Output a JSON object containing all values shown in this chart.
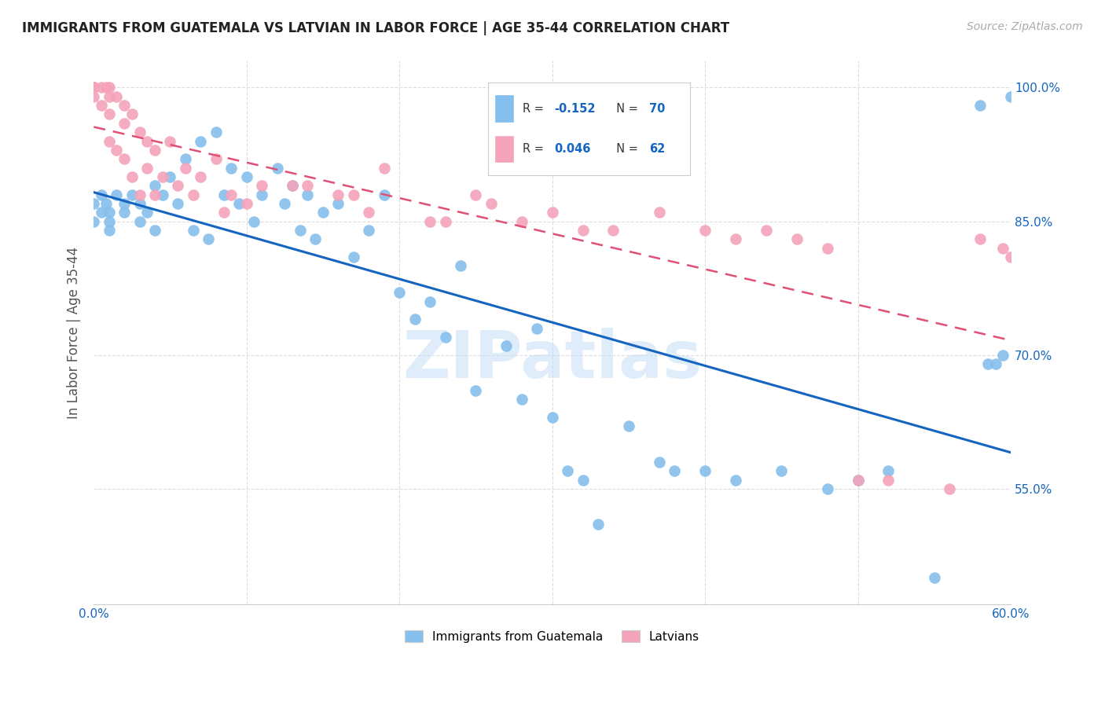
{
  "title": "IMMIGRANTS FROM GUATEMALA VS LATVIAN IN LABOR FORCE | AGE 35-44 CORRELATION CHART",
  "source": "Source: ZipAtlas.com",
  "ylabel": "In Labor Force | Age 35-44",
  "xlim": [
    0.0,
    0.6
  ],
  "ylim": [
    0.42,
    1.03
  ],
  "yticks": [
    0.55,
    0.7,
    0.85,
    1.0
  ],
  "ytick_labels": [
    "55.0%",
    "70.0%",
    "85.0%",
    "100.0%"
  ],
  "xtick_vals": [
    0.0,
    0.1,
    0.2,
    0.3,
    0.4,
    0.5,
    0.6
  ],
  "xtick_labels": [
    "0.0%",
    "",
    "",
    "",
    "",
    "",
    "60.0%"
  ],
  "grid_color": "#dddddd",
  "watermark": "ZIPatlas",
  "legend_R1": "-0.152",
  "legend_N1": "70",
  "legend_R2": "0.046",
  "legend_N2": "62",
  "blue_color": "#85bfed",
  "pink_color": "#f4a3ba",
  "blue_line_color": "#1565c0",
  "pink_line_color": "#e05075",
  "blue_text": "#1565c0",
  "title_color": "#222222",
  "source_color": "#aaaaaa",
  "axis_label_color": "#555555",
  "guatemala_x": [
    0.0,
    0.005,
    0.008,
    0.01,
    0.01,
    0.015,
    0.02,
    0.02,
    0.025,
    0.03,
    0.03,
    0.035,
    0.04,
    0.04,
    0.045,
    0.05,
    0.055,
    0.06,
    0.065,
    0.07,
    0.075,
    0.08,
    0.085,
    0.09,
    0.095,
    0.1,
    0.105,
    0.11,
    0.12,
    0.125,
    0.13,
    0.135,
    0.14,
    0.145,
    0.15,
    0.16,
    0.17,
    0.18,
    0.19,
    0.2,
    0.21,
    0.22,
    0.23,
    0.24,
    0.25,
    0.27,
    0.28,
    0.29,
    0.3,
    0.31,
    0.32,
    0.33,
    0.35,
    0.37,
    0.38,
    0.4,
    0.42,
    0.45,
    0.48,
    0.5,
    0.52,
    0.55,
    0.58,
    0.585,
    0.59,
    0.595,
    0.6,
    0.0,
    0.005,
    0.01
  ],
  "guatemala_y": [
    0.87,
    0.88,
    0.87,
    0.86,
    0.85,
    0.88,
    0.87,
    0.86,
    0.88,
    0.87,
    0.85,
    0.86,
    0.89,
    0.84,
    0.88,
    0.9,
    0.87,
    0.92,
    0.84,
    0.94,
    0.83,
    0.95,
    0.88,
    0.91,
    0.87,
    0.9,
    0.85,
    0.88,
    0.91,
    0.87,
    0.89,
    0.84,
    0.88,
    0.83,
    0.86,
    0.87,
    0.81,
    0.84,
    0.88,
    0.77,
    0.74,
    0.76,
    0.72,
    0.8,
    0.66,
    0.71,
    0.65,
    0.73,
    0.63,
    0.57,
    0.56,
    0.51,
    0.62,
    0.58,
    0.57,
    0.57,
    0.56,
    0.57,
    0.55,
    0.56,
    0.57,
    0.45,
    0.98,
    0.69,
    0.69,
    0.7,
    0.99,
    0.85,
    0.86,
    0.84
  ],
  "latvian_x": [
    0.0,
    0.0,
    0.0,
    0.0,
    0.0,
    0.005,
    0.005,
    0.008,
    0.01,
    0.01,
    0.01,
    0.01,
    0.015,
    0.015,
    0.02,
    0.02,
    0.02,
    0.025,
    0.025,
    0.03,
    0.03,
    0.035,
    0.035,
    0.04,
    0.04,
    0.045,
    0.05,
    0.055,
    0.06,
    0.065,
    0.07,
    0.08,
    0.085,
    0.09,
    0.1,
    0.11,
    0.13,
    0.14,
    0.16,
    0.17,
    0.18,
    0.19,
    0.22,
    0.23,
    0.25,
    0.26,
    0.28,
    0.3,
    0.32,
    0.34,
    0.37,
    0.4,
    0.42,
    0.44,
    0.46,
    0.48,
    0.5,
    0.52,
    0.56,
    0.58,
    0.595,
    0.6
  ],
  "latvian_y": [
    1.0,
    1.0,
    1.0,
    1.0,
    0.99,
    1.0,
    0.98,
    1.0,
    1.0,
    0.99,
    0.97,
    0.94,
    0.99,
    0.93,
    0.98,
    0.96,
    0.92,
    0.97,
    0.9,
    0.95,
    0.88,
    0.94,
    0.91,
    0.93,
    0.88,
    0.9,
    0.94,
    0.89,
    0.91,
    0.88,
    0.9,
    0.92,
    0.86,
    0.88,
    0.87,
    0.89,
    0.89,
    0.89,
    0.88,
    0.88,
    0.86,
    0.91,
    0.85,
    0.85,
    0.88,
    0.87,
    0.85,
    0.86,
    0.84,
    0.84,
    0.86,
    0.84,
    0.83,
    0.84,
    0.83,
    0.82,
    0.56,
    0.56,
    0.55,
    0.83,
    0.82,
    0.81
  ]
}
